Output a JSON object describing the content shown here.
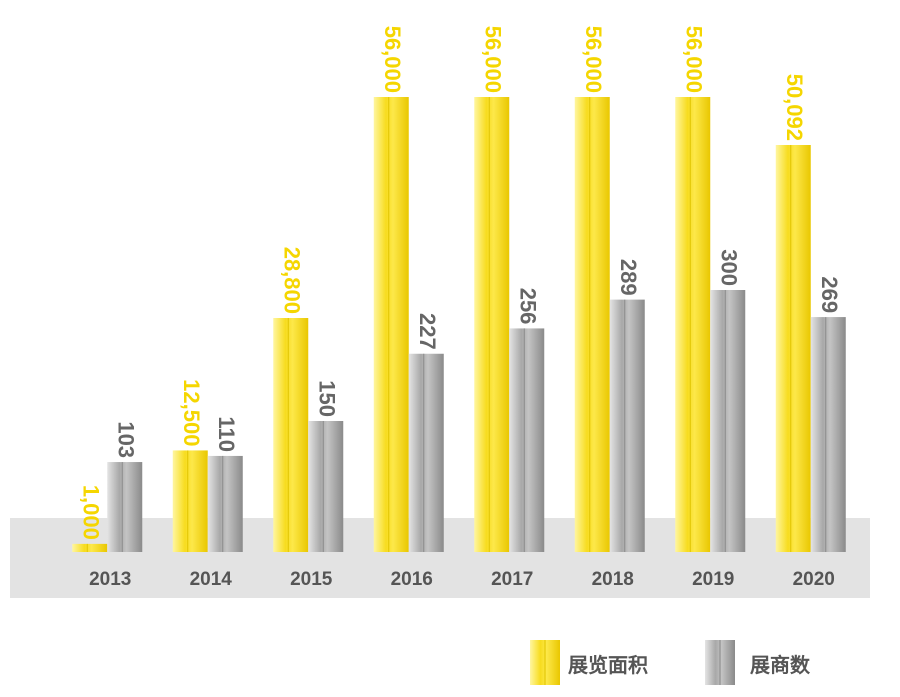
{
  "chart_data": {
    "type": "bar",
    "categories": [
      "2013",
      "2014",
      "2015",
      "2016",
      "2017",
      "2018",
      "2019",
      "2020"
    ],
    "series": [
      {
        "name": "展览面积",
        "color": "#f7dc1e",
        "values": [
          1000,
          12500,
          28800,
          56000,
          56000,
          56000,
          56000,
          50092
        ],
        "value_labels": [
          "1,000",
          "12,500",
          "28,800",
          "56,000",
          "56,000",
          "56,000",
          "56,000",
          "50,092"
        ]
      },
      {
        "name": "展商数",
        "color": "#9d9d9d",
        "axis": "y2",
        "values": [
          103,
          110,
          150,
          227,
          256,
          289,
          300,
          269
        ]
      }
    ]
  }
}
